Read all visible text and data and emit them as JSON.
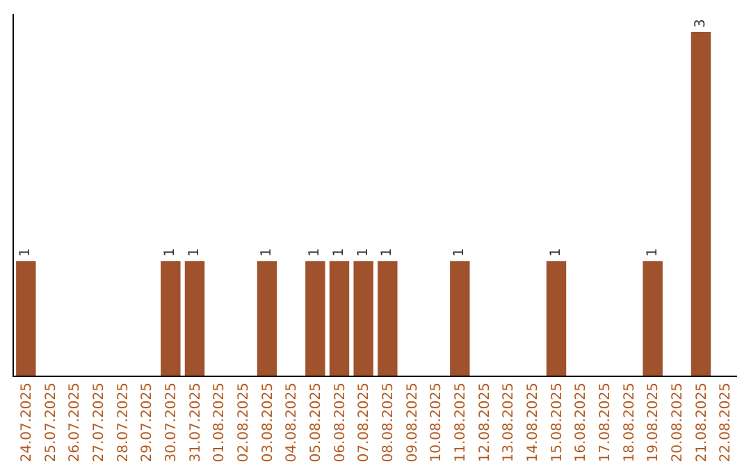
{
  "chart_data": {
    "type": "bar",
    "categories": [
      "24.07.2025",
      "25.07.2025",
      "26.07.2025",
      "27.07.2025",
      "28.07.2025",
      "29.07.2025",
      "30.07.2025",
      "31.07.2025",
      "01.08.2025",
      "02.08.2025",
      "03.08.2025",
      "04.08.2025",
      "05.08.2025",
      "06.08.2025",
      "07.08.2025",
      "08.08.2025",
      "09.08.2025",
      "10.08.2025",
      "11.08.2025",
      "12.08.2025",
      "13.08.2025",
      "14.08.2025",
      "15.08.2025",
      "16.08.2025",
      "17.08.2025",
      "18.08.2025",
      "19.08.2025",
      "20.08.2025",
      "21.08.2025",
      "22.08.2025"
    ],
    "values": [
      1,
      0,
      0,
      0,
      0,
      0,
      1,
      1,
      0,
      0,
      1,
      0,
      1,
      1,
      1,
      1,
      0,
      0,
      1,
      0,
      0,
      0,
      1,
      0,
      0,
      0,
      1,
      0,
      3,
      0
    ],
    "value_labels": [
      "1",
      null,
      null,
      null,
      null,
      null,
      "1",
      "1",
      null,
      null,
      "1",
      null,
      "1",
      "1",
      "1",
      "1",
      null,
      null,
      "1",
      null,
      null,
      null,
      "1",
      null,
      null,
      null,
      "1",
      null,
      "3",
      null
    ],
    "color": "#a0522d",
    "grid": false,
    "legend": false
  }
}
